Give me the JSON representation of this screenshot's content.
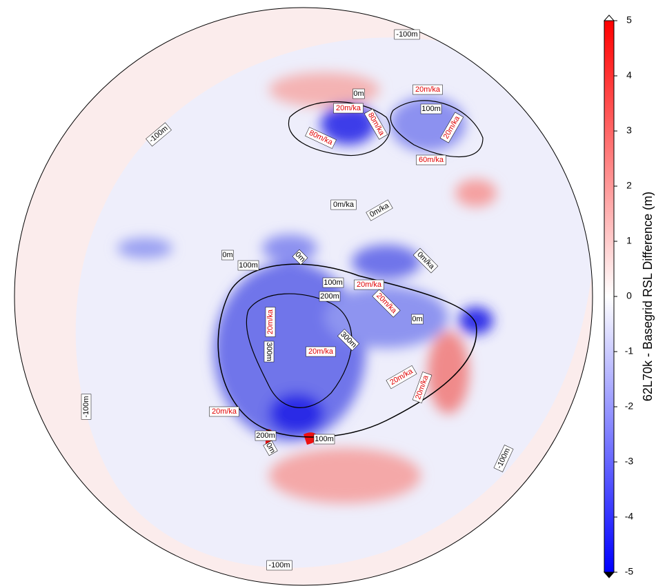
{
  "colorbar": {
    "label": "62L70k - Basegrid RSL Difference (m)",
    "ticks": [
      5,
      4,
      3,
      2,
      1,
      0,
      -1,
      -2,
      -3,
      -4,
      -5
    ],
    "lim": [
      -5,
      5
    ],
    "colormap": [
      "#0000ff",
      "#ffffff",
      "#ff0000"
    ]
  },
  "contour_labels": [
    "-100m",
    "-100m",
    "-100m",
    "-100m",
    "-100m",
    "0m",
    "100m",
    "0m/ka",
    "0m/ka",
    "0m/ka",
    "0m",
    "0m",
    "100m",
    "100m",
    "200m",
    "300m",
    "300m",
    "0m",
    "200m",
    "0m",
    "100m"
  ],
  "rate_labels": [
    "20m/ka",
    "80m/ka",
    "80m/ka",
    "20m/ka",
    "20m/ka",
    "60m/ka",
    "20m/ka",
    "20m/ka",
    "20m/ka",
    "20m/ka",
    "20m/ka",
    "20m/ka",
    "20m/ka"
  ]
}
